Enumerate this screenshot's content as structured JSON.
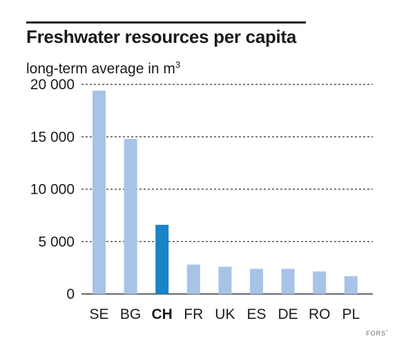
{
  "title": "Freshwater resources per capita",
  "subtitle": {
    "text": "long-term average in m",
    "sup": "3"
  },
  "credit": {
    "text": "FORS",
    "mark": "°"
  },
  "colors": {
    "bar": "#a7c3e8",
    "highlight": "#1a84c8",
    "grid": "#333333",
    "text": "#1a1a1a"
  },
  "chart_data": {
    "type": "bar",
    "title": "Freshwater resources per capita",
    "ylabel": "long-term average in m3",
    "xlabel": "",
    "categories": [
      "SE",
      "BG",
      "CH",
      "FR",
      "UK",
      "ES",
      "DE",
      "RO",
      "PL"
    ],
    "values": [
      19400,
      14800,
      6600,
      2800,
      2600,
      2400,
      2400,
      2150,
      1700
    ],
    "highlight": "CH",
    "ylim": [
      0,
      20000
    ],
    "yticks": [
      0,
      5000,
      10000,
      15000,
      20000
    ],
    "ytick_labels": [
      "0",
      "5 000",
      "10 000",
      "15 000",
      "20 000"
    ],
    "grid": "dashed horizontal",
    "legend": "none"
  }
}
